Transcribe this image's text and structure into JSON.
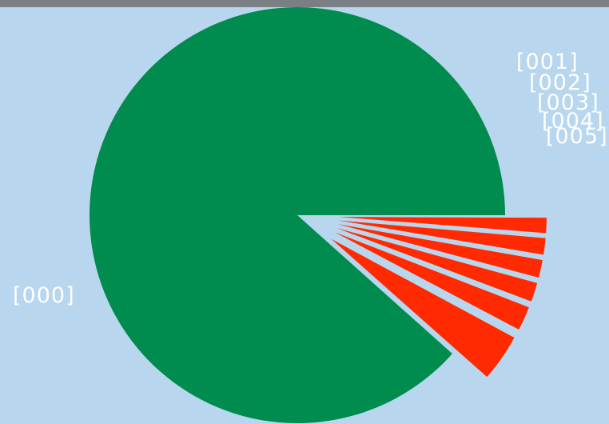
{
  "chart_data": {
    "type": "pie",
    "slices": [
      {
        "label": "[000]",
        "value": 88.4,
        "exploded": false
      },
      {
        "label": "[001]",
        "value": 3.8,
        "exploded": true
      },
      {
        "label": "[002]",
        "value": 2.0,
        "exploded": true
      },
      {
        "label": "[003]",
        "value": 1.6,
        "exploded": true
      },
      {
        "label": "[004]",
        "value": 1.5,
        "exploded": true
      },
      {
        "label": "[005]",
        "value": 1.4,
        "exploded": true
      },
      {
        "label": "",
        "value": 1.3,
        "exploded": true
      }
    ],
    "colors": {
      "main": "#008c4e",
      "exploded": "#ff2a00",
      "background": "#b8d6ee",
      "label": "#ffffff",
      "top_bar": "#7a7f84"
    },
    "start_angle_deg": 0,
    "direction": "counterclockwise",
    "legend": "none"
  }
}
